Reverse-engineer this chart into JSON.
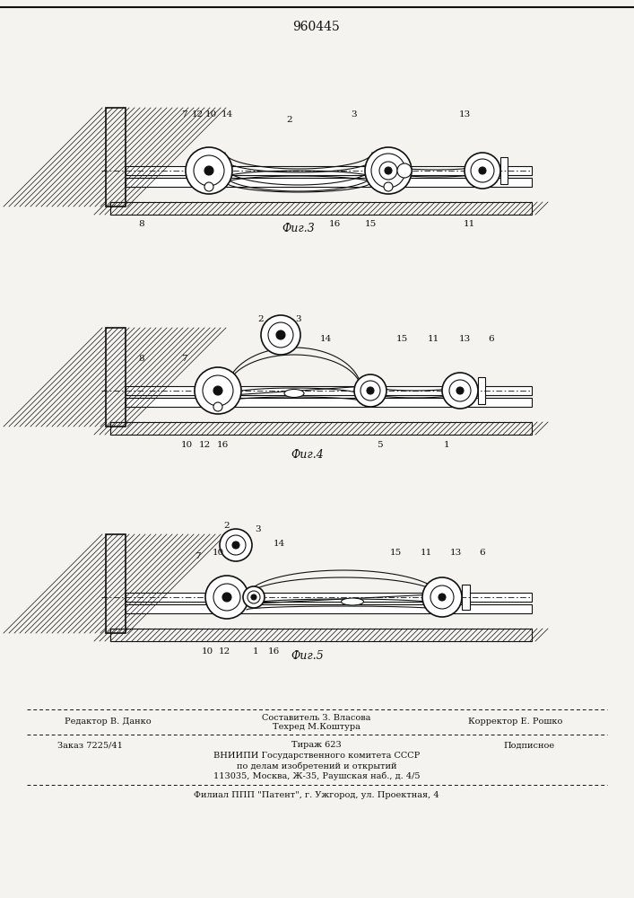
{
  "title": "960445",
  "bg_color": "#f5f3ef",
  "fig3_caption": "Фиг.3",
  "fig4_caption": "Фиг.4",
  "fig5_caption": "Фиг.5",
  "footer_line1_left": "Редактор В. Данко",
  "footer_line1_center1": "Составитель З. Власова",
  "footer_line1_center2": "Техред М.Коштура",
  "footer_line1_right": "Корректор Е. Рошко",
  "footer_order": "Заказ 7225/41",
  "footer_tirazh": "Тираж 623",
  "footer_podp": "Подписное",
  "footer_vniip1": "ВНИИПИ Государственного комитета СССР",
  "footer_vniip2": "по делам изобретений и открытий",
  "footer_vniip3": "113035, Москва, Ж-35, Раушская наб., д. 4/5",
  "footer_filial": "Филиал ППП \"Патент\", г. Ужгород, ул. Проектная, 4"
}
